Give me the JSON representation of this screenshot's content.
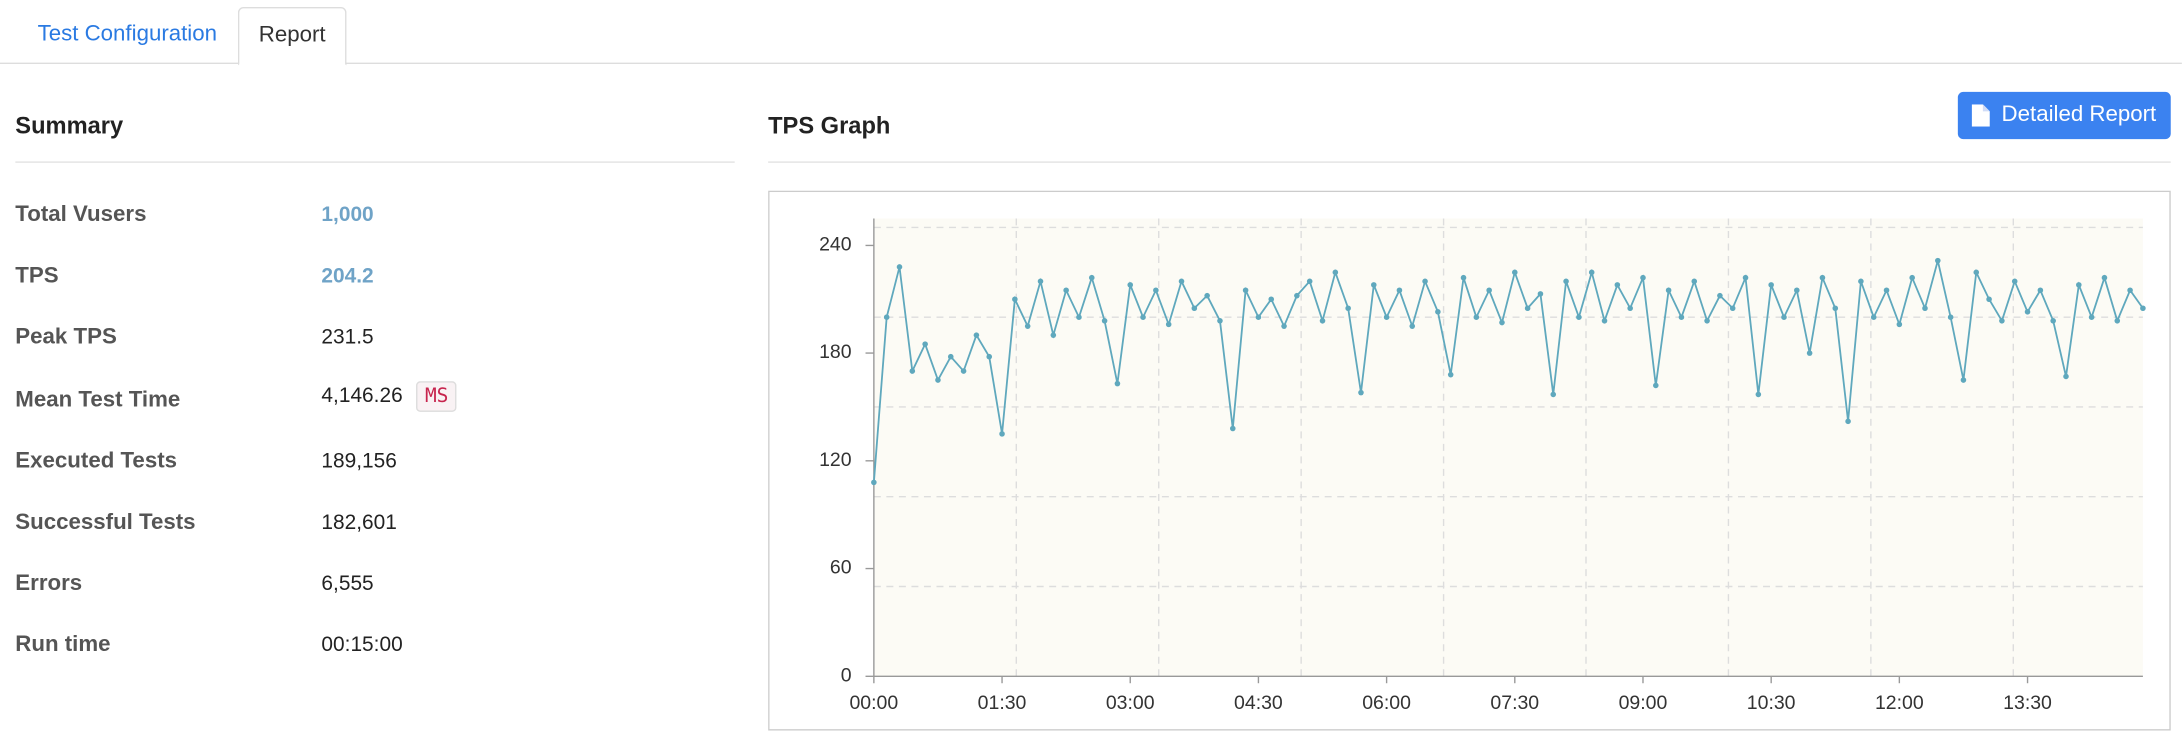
{
  "tabs": [
    "Test Configuration",
    "Report"
  ],
  "summary": {
    "title": "Summary",
    "rows": [
      {
        "label": "Total Vusers",
        "value": "1,000"
      },
      {
        "label": "TPS",
        "value": "204.2"
      },
      {
        "label": "Peak TPS",
        "value": "231.5"
      },
      {
        "label": "Mean Test Time",
        "value": "4,146.26",
        "unit": "MS"
      },
      {
        "label": "Executed Tests",
        "value": "189,156"
      },
      {
        "label": "Successful Tests",
        "value": "182,601"
      },
      {
        "label": "Errors",
        "value": "6,555"
      },
      {
        "label": "Run time",
        "value": "00:15:00"
      }
    ]
  },
  "graph": {
    "title": "TPS Graph",
    "button": "Detailed Report"
  },
  "chart_data": {
    "type": "line",
    "x": [
      0,
      9,
      18,
      27,
      36,
      45,
      54,
      63,
      72,
      81,
      90,
      99,
      108,
      117,
      126,
      135,
      144,
      153,
      162,
      171,
      180,
      189,
      198,
      207,
      216,
      225,
      234,
      243,
      252,
      261,
      270,
      279,
      288,
      297,
      306,
      315,
      324,
      333,
      342,
      351,
      360,
      369,
      378,
      387,
      396,
      405,
      414,
      423,
      432,
      441,
      450,
      459,
      468,
      477,
      486,
      495,
      504,
      513,
      522,
      531,
      540,
      549,
      558,
      567,
      576,
      585,
      594,
      603,
      612,
      621,
      630,
      639,
      648,
      657,
      666,
      675,
      684,
      693,
      702,
      711,
      720,
      729,
      738,
      747,
      756,
      765,
      774,
      783,
      792,
      801,
      810,
      819,
      828,
      837,
      846,
      855,
      864,
      873,
      882,
      891
    ],
    "series": [
      {
        "color": "#5fa8bd",
        "values": [
          108,
          200,
          228,
          170,
          185,
          165,
          178,
          170,
          190,
          178,
          135,
          210,
          195,
          220,
          190,
          215,
          200,
          222,
          198,
          163,
          218,
          200,
          215,
          196,
          220,
          205,
          212,
          198,
          138,
          215,
          200,
          210,
          195,
          212,
          220,
          198,
          225,
          205,
          158,
          218,
          200,
          215,
          195,
          220,
          203,
          168,
          222,
          200,
          215,
          197,
          225,
          205,
          213,
          157,
          220,
          200,
          225,
          198,
          218,
          205,
          222,
          162,
          215,
          200,
          220,
          198,
          212,
          205,
          222,
          157,
          218,
          200,
          215,
          180,
          222,
          205,
          142,
          220,
          200,
          215,
          196,
          222,
          205,
          231.5,
          200,
          165,
          225,
          210,
          198,
          220,
          203,
          215,
          198,
          167,
          218,
          200,
          222,
          198,
          215,
          205
        ]
      }
    ],
    "xlim": [
      0,
      891
    ],
    "ylim": [
      0,
      255
    ],
    "xticks": [
      {
        "value": 0,
        "label": "00:00"
      },
      {
        "value": 90,
        "label": "01:30"
      },
      {
        "value": 180,
        "label": "03:00"
      },
      {
        "value": 270,
        "label": "04:30"
      },
      {
        "value": 360,
        "label": "06:00"
      },
      {
        "value": 450,
        "label": "07:30"
      },
      {
        "value": 540,
        "label": "09:00"
      },
      {
        "value": 630,
        "label": "10:30"
      },
      {
        "value": 720,
        "label": "12:00"
      },
      {
        "value": 810,
        "label": "13:30"
      }
    ],
    "yticks": [
      0,
      60,
      120,
      180,
      240
    ],
    "xgrid": [
      100,
      200,
      300,
      400,
      500,
      600,
      700,
      800
    ],
    "ygrid": [
      50,
      100,
      150,
      200,
      250
    ]
  }
}
